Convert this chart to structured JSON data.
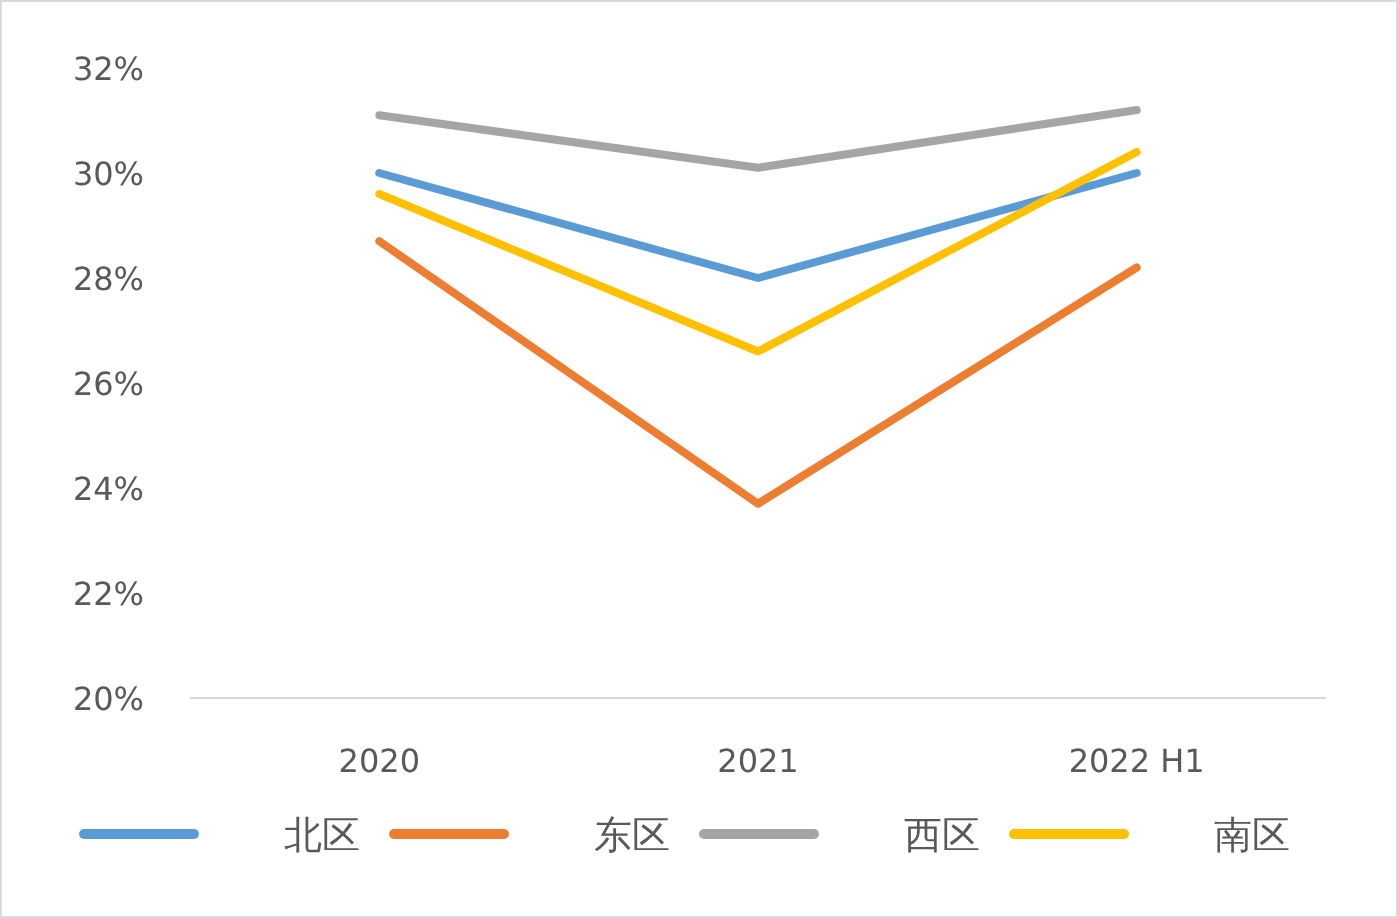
{
  "chart_data": {
    "type": "line",
    "categories": [
      "2020",
      "2021",
      "2022 H1"
    ],
    "series": [
      {
        "name": "北区",
        "color": "#5b9bd5",
        "values": [
          30.0,
          28.0,
          30.0
        ]
      },
      {
        "name": "东区",
        "color": "#ed7d31",
        "values": [
          28.7,
          23.7,
          28.2
        ]
      },
      {
        "name": "西区",
        "color": "#a5a5a5",
        "values": [
          31.1,
          30.1,
          31.2
        ]
      },
      {
        "name": "南区",
        "color": "#ffc000",
        "values": [
          29.6,
          26.6,
          30.4
        ]
      }
    ],
    "ylim": [
      20,
      32
    ],
    "yticks": [
      {
        "value": 20,
        "label": "20%"
      },
      {
        "value": 22,
        "label": "22%"
      },
      {
        "value": 24,
        "label": "24%"
      },
      {
        "value": 26,
        "label": "26%"
      },
      {
        "value": 28,
        "label": "28%"
      },
      {
        "value": 30,
        "label": "30%"
      },
      {
        "value": 32,
        "label": "32%"
      }
    ],
    "legend": "bottom",
    "marker": "none",
    "line_style": "solid"
  }
}
